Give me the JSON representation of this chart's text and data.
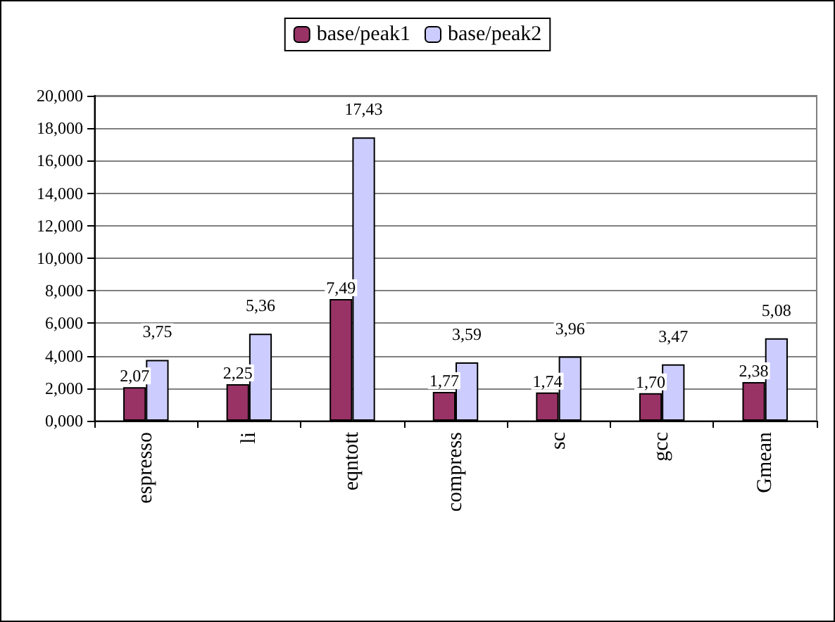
{
  "chart_data": {
    "type": "bar",
    "categories": [
      "espresso",
      "li",
      "eqntott",
      "compress",
      "sc",
      "gcc",
      "Gmean"
    ],
    "series": [
      {
        "name": "base/peak1",
        "color": "#993366",
        "values": [
          2.07,
          2.25,
          7.49,
          1.77,
          1.74,
          1.7,
          2.38
        ],
        "value_labels": [
          "2,07",
          "2,25",
          "7,49",
          "1,77",
          "1,74",
          "1,70",
          "2,38"
        ]
      },
      {
        "name": "base/peak2",
        "color": "#ccccff",
        "values": [
          3.75,
          5.36,
          17.43,
          3.59,
          3.96,
          3.47,
          5.08
        ],
        "value_labels": [
          "3,75",
          "5,36",
          "17,43",
          "3,59",
          "3,96",
          "3,47",
          "5,08"
        ]
      }
    ],
    "ylim": [
      0,
      20
    ],
    "yticks": [
      {
        "value": 0,
        "label": "0,000"
      },
      {
        "value": 2,
        "label": "2,000"
      },
      {
        "value": 4,
        "label": "4,000"
      },
      {
        "value": 6,
        "label": "6,000"
      },
      {
        "value": 8,
        "label": "8,000"
      },
      {
        "value": 10,
        "label": "10,000"
      },
      {
        "value": 12,
        "label": "12,000"
      },
      {
        "value": 14,
        "label": "14,000"
      },
      {
        "value": 16,
        "label": "16,000"
      },
      {
        "value": 18,
        "label": "18,000"
      },
      {
        "value": 20,
        "label": "20,000"
      }
    ],
    "grid": "y",
    "legend": "top"
  }
}
